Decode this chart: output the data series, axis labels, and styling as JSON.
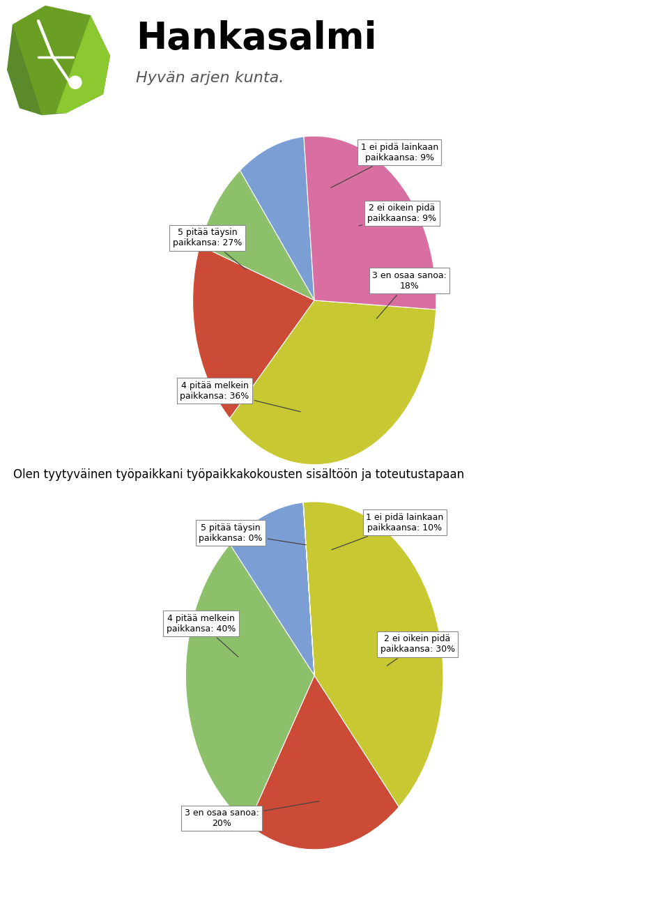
{
  "chart1": {
    "values": [
      9,
      9,
      18,
      36,
      27
    ],
    "colors": [
      "#7b9fd4",
      "#8dc06b",
      "#cc4b37",
      "#c8c832",
      "#d96fa0"
    ],
    "labels": [
      "1 ei pidä lainkaan\npaikkaansa: 9%",
      "2 ei oikein pidä\npaikkaansa: 9%",
      "3 en osaa sanoa:\n18%",
      "4 pitää melkein\npaikkansa: 36%",
      "5 pitää täysin\npaikkansa: 27%"
    ],
    "startangle": 95
  },
  "chart2": {
    "values": [
      10,
      30,
      20,
      40,
      0.001
    ],
    "colors": [
      "#7b9fd4",
      "#8dc06b",
      "#cc4b37",
      "#c8c832",
      "#d96fa0"
    ],
    "labels": [
      "1 ei pidä lainkaan\npaikkaansa: 10%",
      "2 ei oikein pidä\npaikkaansa: 30%",
      "3 en osaa sanoa:\n20%",
      "4 pitää melkein\npaikkansa: 40%",
      "5 pitää täysin\npaikkansa: 0%"
    ],
    "startangle": 95
  },
  "title2": "Olen tyytyväinen työpaikkani työpaikkakokousten sisältöön ja toteutustapaan",
  "background_color": "#ffffff",
  "logo_text": "Hankasalmi",
  "logo_subtext": "Hyvän arjen kunta."
}
